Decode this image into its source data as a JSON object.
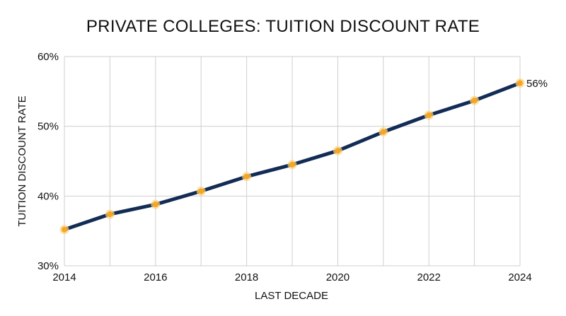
{
  "chart_data": {
    "type": "line",
    "title": "PRIVATE COLLEGES: TUITION DISCOUNT RATE",
    "xlabel": "LAST DECADE",
    "ylabel": "TUITION DISCOUNT RATE",
    "x": [
      2014,
      2015,
      2016,
      2017,
      2018,
      2019,
      2020,
      2021,
      2022,
      2023,
      2024
    ],
    "series": [
      {
        "values": [
          35.2,
          37.4,
          38.8,
          40.7,
          42.8,
          44.5,
          46.5,
          49.2,
          51.6,
          53.7,
          56.2
        ]
      }
    ],
    "xlim": [
      2014,
      2024
    ],
    "ylim": [
      30,
      60
    ],
    "x_ticks": [
      2014,
      2016,
      2018,
      2020,
      2022,
      2024
    ],
    "x_tick_labels": [
      "2014",
      "2016",
      "2018",
      "2020",
      "2022",
      "2024"
    ],
    "y_ticks": [
      30,
      40,
      50,
      60
    ],
    "y_tick_labels": [
      "30%",
      "40%",
      "50%",
      "60%"
    ],
    "end_label": "56%",
    "grid": true,
    "legend": "none",
    "colors": {
      "line": "#132c55",
      "marker": "#f6a623",
      "marker_glow": "#fbd27a"
    }
  }
}
